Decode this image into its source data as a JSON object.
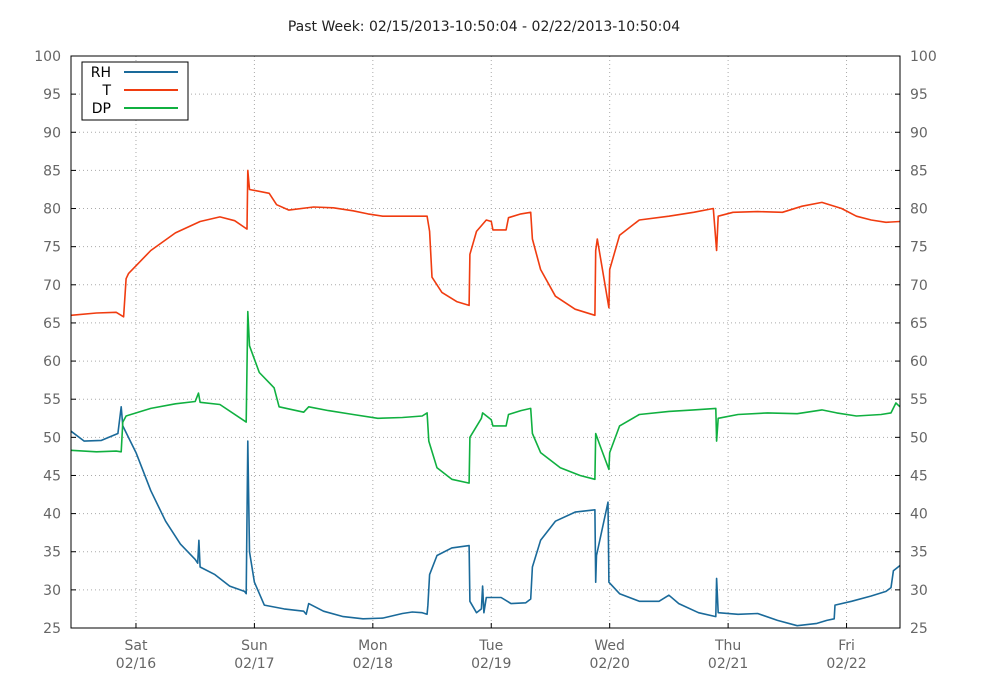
{
  "chart_data": {
    "type": "line",
    "title": "Past Week: 02/15/2013-10:50:04 - 02/22/2013-10:50:04",
    "xlabel": "",
    "ylabel": "",
    "ylim": [
      25,
      100
    ],
    "yticks": [
      "25",
      "30",
      "35",
      "40",
      "45",
      "50",
      "55",
      "60",
      "65",
      "70",
      "75",
      "80",
      "85",
      "90",
      "95",
      "100"
    ],
    "xlim": [
      "2013-02-15 10:50",
      "2013-02-22 10:50"
    ],
    "xticks": [
      {
        "x": "2013-02-16 00:00",
        "day": "Sat",
        "date": "02/16"
      },
      {
        "x": "2013-02-17 00:00",
        "day": "Sun",
        "date": "02/17"
      },
      {
        "x": "2013-02-18 00:00",
        "day": "Mon",
        "date": "02/18"
      },
      {
        "x": "2013-02-19 00:00",
        "day": "Tue",
        "date": "02/19"
      },
      {
        "x": "2013-02-20 00:00",
        "day": "Wed",
        "date": "02/20"
      },
      {
        "x": "2013-02-21 00:00",
        "day": "Thu",
        "date": "02/21"
      },
      {
        "x": "2013-02-22 00:00",
        "day": "Fri",
        "date": "02/22"
      }
    ],
    "grid": true,
    "legend_position": "top-left",
    "series": [
      {
        "name": "RH",
        "color": "#1a6a9a",
        "points": [
          [
            "2013-02-15 10:50",
            50.8
          ],
          [
            "2013-02-15 13:30",
            49.5
          ],
          [
            "2013-02-15 17:00",
            49.6
          ],
          [
            "2013-02-15 20:20",
            50.5
          ],
          [
            "2013-02-15 21:00",
            54.0
          ],
          [
            "2013-02-15 21:20",
            51.5
          ],
          [
            "2013-02-16 00:00",
            48.0
          ],
          [
            "2013-02-16 03:00",
            43.0
          ],
          [
            "2013-02-16 06:00",
            39.0
          ],
          [
            "2013-02-16 09:00",
            36.0
          ],
          [
            "2013-02-16 12:00",
            34.0
          ],
          [
            "2013-02-16 12:30",
            33.5
          ],
          [
            "2013-02-16 12:45",
            36.5
          ],
          [
            "2013-02-16 13:00",
            33.0
          ],
          [
            "2013-02-16 16:00",
            32.0
          ],
          [
            "2013-02-16 19:00",
            30.5
          ],
          [
            "2013-02-16 22:00",
            29.8
          ],
          [
            "2013-02-16 22:20",
            29.5
          ],
          [
            "2013-02-16 22:40",
            49.5
          ],
          [
            "2013-02-16 23:00",
            35.0
          ],
          [
            "2013-02-17 00:00",
            31.0
          ],
          [
            "2013-02-17 02:00",
            28.0
          ],
          [
            "2013-02-17 06:00",
            27.5
          ],
          [
            "2013-02-17 10:00",
            27.2
          ],
          [
            "2013-02-17 10:30",
            26.8
          ],
          [
            "2013-02-17 11:00",
            28.2
          ],
          [
            "2013-02-17 14:00",
            27.2
          ],
          [
            "2013-02-17 18:00",
            26.5
          ],
          [
            "2013-02-17 22:00",
            26.2
          ],
          [
            "2013-02-18 02:00",
            26.3
          ],
          [
            "2013-02-18 06:00",
            26.9
          ],
          [
            "2013-02-18 08:00",
            27.1
          ],
          [
            "2013-02-18 10:00",
            27.0
          ],
          [
            "2013-02-18 11:00",
            26.8
          ],
          [
            "2013-02-18 11:10",
            28.0
          ],
          [
            "2013-02-18 11:30",
            32.0
          ],
          [
            "2013-02-18 13:00",
            34.5
          ],
          [
            "2013-02-18 16:00",
            35.5
          ],
          [
            "2013-02-18 19:30",
            35.8
          ],
          [
            "2013-02-18 19:40",
            28.5
          ],
          [
            "2013-02-18 21:00",
            27.0
          ],
          [
            "2013-02-18 22:00",
            27.5
          ],
          [
            "2013-02-18 22:15",
            30.5
          ],
          [
            "2013-02-18 22:30",
            27.0
          ],
          [
            "2013-02-18 23:00",
            29.0
          ],
          [
            "2013-02-19 02:00",
            29.0
          ],
          [
            "2013-02-19 04:00",
            28.2
          ],
          [
            "2013-02-19 07:00",
            28.3
          ],
          [
            "2013-02-19 08:00",
            28.8
          ],
          [
            "2013-02-19 08:20",
            33.0
          ],
          [
            "2013-02-19 10:00",
            36.5
          ],
          [
            "2013-02-19 13:00",
            39.0
          ],
          [
            "2013-02-19 17:00",
            40.2
          ],
          [
            "2013-02-19 21:00",
            40.5
          ],
          [
            "2013-02-19 21:10",
            31.0
          ],
          [
            "2013-02-19 21:20",
            34.5
          ],
          [
            "2013-02-19 23:40",
            41.5
          ],
          [
            "2013-02-19 23:50",
            31.0
          ],
          [
            "2013-02-20 02:00",
            29.5
          ],
          [
            "2013-02-20 06:00",
            28.5
          ],
          [
            "2013-02-20 10:00",
            28.5
          ],
          [
            "2013-02-20 12:00",
            29.3
          ],
          [
            "2013-02-20 14:00",
            28.2
          ],
          [
            "2013-02-20 18:00",
            27.0
          ],
          [
            "2013-02-20 21:30",
            26.5
          ],
          [
            "2013-02-20 21:40",
            31.5
          ],
          [
            "2013-02-20 22:00",
            27.0
          ],
          [
            "2013-02-21 02:00",
            26.8
          ],
          [
            "2013-02-21 06:00",
            26.9
          ],
          [
            "2013-02-21 10:00",
            26.0
          ],
          [
            "2013-02-21 14:00",
            25.3
          ],
          [
            "2013-02-21 18:00",
            25.6
          ],
          [
            "2013-02-21 20:00",
            26.0
          ],
          [
            "2013-02-21 21:30",
            26.2
          ],
          [
            "2013-02-21 21:40",
            28.0
          ],
          [
            "2013-02-22 01:00",
            28.5
          ],
          [
            "2013-02-22 05:00",
            29.2
          ],
          [
            "2013-02-22 08:00",
            29.8
          ],
          [
            "2013-02-22 09:00",
            30.3
          ],
          [
            "2013-02-22 09:30",
            32.5
          ],
          [
            "2013-02-22 10:50",
            33.2
          ]
        ]
      },
      {
        "name": "T",
        "color": "#f03c10",
        "points": [
          [
            "2013-02-15 10:50",
            66.0
          ],
          [
            "2013-02-15 16:00",
            66.3
          ],
          [
            "2013-02-15 20:00",
            66.4
          ],
          [
            "2013-02-15 21:30",
            65.8
          ],
          [
            "2013-02-15 22:00",
            70.8
          ],
          [
            "2013-02-15 22:30",
            71.5
          ],
          [
            "2013-02-16 03:00",
            74.5
          ],
          [
            "2013-02-16 08:00",
            76.8
          ],
          [
            "2013-02-16 13:00",
            78.3
          ],
          [
            "2013-02-16 17:00",
            78.9
          ],
          [
            "2013-02-16 20:00",
            78.4
          ],
          [
            "2013-02-16 22:30",
            77.3
          ],
          [
            "2013-02-16 22:40",
            85.0
          ],
          [
            "2013-02-16 23:00",
            82.5
          ],
          [
            "2013-02-17 03:00",
            82.0
          ],
          [
            "2013-02-17 04:30",
            80.5
          ],
          [
            "2013-02-17 07:00",
            79.8
          ],
          [
            "2013-02-17 12:00",
            80.2
          ],
          [
            "2013-02-17 16:00",
            80.1
          ],
          [
            "2013-02-17 20:00",
            79.7
          ],
          [
            "2013-02-17 23:00",
            79.3
          ],
          [
            "2013-02-18 02:00",
            79.0
          ],
          [
            "2013-02-18 07:00",
            79.0
          ],
          [
            "2013-02-18 11:00",
            79.0
          ],
          [
            "2013-02-18 11:30",
            77.0
          ],
          [
            "2013-02-18 12:00",
            71.0
          ],
          [
            "2013-02-18 14:00",
            69.0
          ],
          [
            "2013-02-18 17:00",
            67.8
          ],
          [
            "2013-02-18 19:30",
            67.3
          ],
          [
            "2013-02-18 19:40",
            74.0
          ],
          [
            "2013-02-18 21:00",
            77.0
          ],
          [
            "2013-02-18 23:00",
            78.5
          ],
          [
            "2013-02-19 00:00",
            78.3
          ],
          [
            "2013-02-19 00:20",
            77.2
          ],
          [
            "2013-02-19 03:00",
            77.2
          ],
          [
            "2013-02-19 03:30",
            78.8
          ],
          [
            "2013-02-19 06:00",
            79.3
          ],
          [
            "2013-02-19 08:00",
            79.5
          ],
          [
            "2013-02-19 08:20",
            76.0
          ],
          [
            "2013-02-19 10:00",
            72.0
          ],
          [
            "2013-02-19 13:00",
            68.5
          ],
          [
            "2013-02-19 17:00",
            66.8
          ],
          [
            "2013-02-19 21:00",
            66.0
          ],
          [
            "2013-02-19 21:10",
            74.5
          ],
          [
            "2013-02-19 21:30",
            76.0
          ],
          [
            "2013-02-19 23:50",
            67.0
          ],
          [
            "2013-02-20 00:00",
            72.0
          ],
          [
            "2013-02-20 02:00",
            76.5
          ],
          [
            "2013-02-20 06:00",
            78.5
          ],
          [
            "2013-02-20 12:00",
            79.0
          ],
          [
            "2013-02-20 17:00",
            79.5
          ],
          [
            "2013-02-20 21:00",
            80.0
          ],
          [
            "2013-02-20 21:40",
            74.5
          ],
          [
            "2013-02-20 22:00",
            79.0
          ],
          [
            "2013-02-21 01:00",
            79.5
          ],
          [
            "2013-02-21 06:00",
            79.6
          ],
          [
            "2013-02-21 11:00",
            79.5
          ],
          [
            "2013-02-21 15:00",
            80.3
          ],
          [
            "2013-02-21 19:00",
            80.8
          ],
          [
            "2013-02-21 23:00",
            80.0
          ],
          [
            "2013-02-22 02:00",
            79.0
          ],
          [
            "2013-02-22 05:00",
            78.5
          ],
          [
            "2013-02-22 08:00",
            78.2
          ],
          [
            "2013-02-22 10:50",
            78.3
          ]
        ]
      },
      {
        "name": "DP",
        "color": "#10b040",
        "points": [
          [
            "2013-02-15 10:50",
            48.3
          ],
          [
            "2013-02-15 16:00",
            48.1
          ],
          [
            "2013-02-15 20:00",
            48.2
          ],
          [
            "2013-02-15 21:00",
            48.1
          ],
          [
            "2013-02-15 21:20",
            52.0
          ],
          [
            "2013-02-15 22:00",
            52.8
          ],
          [
            "2013-02-16 03:00",
            53.8
          ],
          [
            "2013-02-16 08:00",
            54.4
          ],
          [
            "2013-02-16 12:00",
            54.7
          ],
          [
            "2013-02-16 12:40",
            55.8
          ],
          [
            "2013-02-16 13:00",
            54.6
          ],
          [
            "2013-02-16 17:00",
            54.3
          ],
          [
            "2013-02-16 22:20",
            52.0
          ],
          [
            "2013-02-16 22:40",
            66.5
          ],
          [
            "2013-02-16 23:00",
            62.0
          ],
          [
            "2013-02-17 01:00",
            58.5
          ],
          [
            "2013-02-17 04:00",
            56.5
          ],
          [
            "2013-02-17 05:00",
            54.0
          ],
          [
            "2013-02-17 10:00",
            53.3
          ],
          [
            "2013-02-17 11:00",
            54.0
          ],
          [
            "2013-02-17 15:00",
            53.5
          ],
          [
            "2013-02-17 20:00",
            53.0
          ],
          [
            "2013-02-18 01:00",
            52.5
          ],
          [
            "2013-02-18 06:00",
            52.6
          ],
          [
            "2013-02-18 10:00",
            52.8
          ],
          [
            "2013-02-18 11:00",
            53.2
          ],
          [
            "2013-02-18 11:20",
            49.5
          ],
          [
            "2013-02-18 13:00",
            46.0
          ],
          [
            "2013-02-18 16:00",
            44.5
          ],
          [
            "2013-02-18 19:30",
            44.0
          ],
          [
            "2013-02-18 19:40",
            50.0
          ],
          [
            "2013-02-18 22:00",
            52.5
          ],
          [
            "2013-02-18 22:15",
            53.2
          ],
          [
            "2013-02-19 00:00",
            52.3
          ],
          [
            "2013-02-19 00:20",
            51.5
          ],
          [
            "2013-02-19 03:00",
            51.5
          ],
          [
            "2013-02-19 03:30",
            53.0
          ],
          [
            "2013-02-19 06:00",
            53.5
          ],
          [
            "2013-02-19 08:00",
            53.8
          ],
          [
            "2013-02-19 08:20",
            50.5
          ],
          [
            "2013-02-19 10:00",
            48.0
          ],
          [
            "2013-02-19 14:00",
            46.0
          ],
          [
            "2013-02-19 18:00",
            45.0
          ],
          [
            "2013-02-19 21:00",
            44.5
          ],
          [
            "2013-02-19 21:10",
            50.5
          ],
          [
            "2013-02-19 22:00",
            49.0
          ],
          [
            "2013-02-19 23:50",
            45.8
          ],
          [
            "2013-02-20 00:00",
            48.0
          ],
          [
            "2013-02-20 02:00",
            51.5
          ],
          [
            "2013-02-20 06:00",
            53.0
          ],
          [
            "2013-02-20 12:00",
            53.4
          ],
          [
            "2013-02-20 17:00",
            53.6
          ],
          [
            "2013-02-20 21:30",
            53.8
          ],
          [
            "2013-02-20 21:40",
            49.5
          ],
          [
            "2013-02-20 22:00",
            52.5
          ],
          [
            "2013-02-21 02:00",
            53.0
          ],
          [
            "2013-02-21 08:00",
            53.2
          ],
          [
            "2013-02-21 14:00",
            53.1
          ],
          [
            "2013-02-21 19:00",
            53.6
          ],
          [
            "2013-02-21 22:00",
            53.2
          ],
          [
            "2013-02-22 02:00",
            52.8
          ],
          [
            "2013-02-22 07:00",
            53.0
          ],
          [
            "2013-02-22 09:00",
            53.2
          ],
          [
            "2013-02-22 10:00",
            54.5
          ],
          [
            "2013-02-22 10:50",
            54.0
          ]
        ]
      }
    ]
  }
}
